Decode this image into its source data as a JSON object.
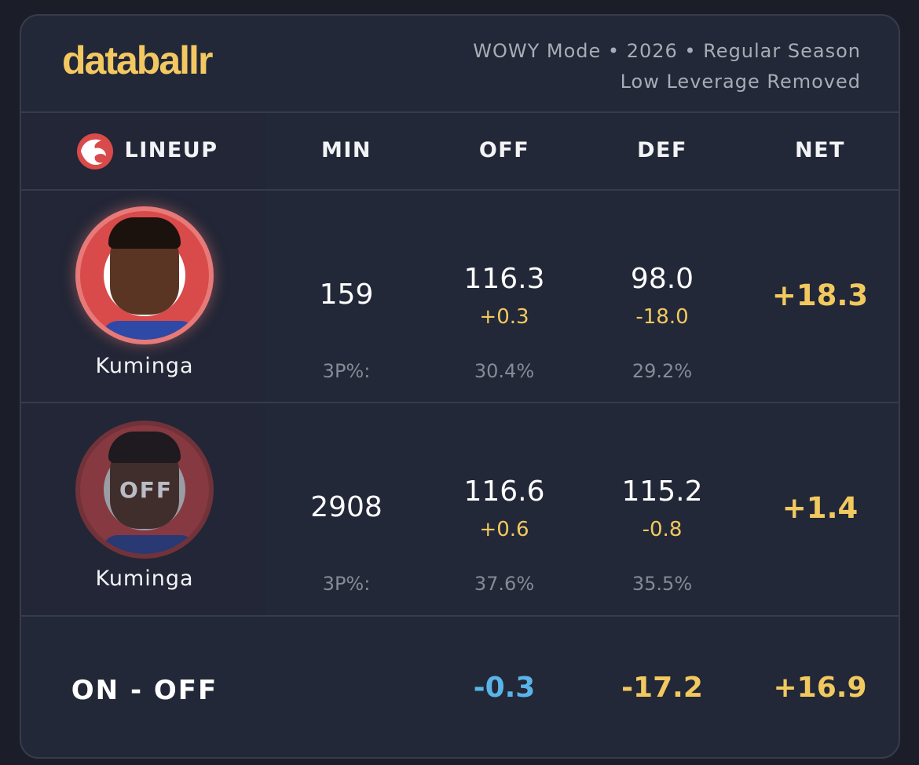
{
  "header": {
    "logo": "databallr",
    "meta_line1": "WOWY Mode • 2026 • Regular Season",
    "meta_line2": "Low Leverage Removed"
  },
  "columns": {
    "lineup": "LINEUP",
    "min": "MIN",
    "off": "OFF",
    "def": "DEF",
    "net": "NET"
  },
  "rows": [
    {
      "player": "Kuminga",
      "state": "on",
      "min": "159",
      "off": "116.3",
      "off_delta": "+0.3",
      "def": "98.0",
      "def_delta": "-18.0",
      "net": "+18.3",
      "pct_label": "3P%:",
      "off_3p": "30.4%",
      "def_3p": "29.2%"
    },
    {
      "player": "Kuminga",
      "state": "off",
      "off_badge": "OFF",
      "min": "2908",
      "off": "116.6",
      "off_delta": "+0.6",
      "def": "115.2",
      "def_delta": "-0.8",
      "net": "+1.4",
      "pct_label": "3P%:",
      "off_3p": "37.6%",
      "def_3p": "35.5%"
    }
  ],
  "footer": {
    "label": "ON - OFF",
    "off": "-0.3",
    "def": "-17.2",
    "net": "+16.9"
  },
  "colors": {
    "accent": "#f2c95f",
    "negative_blue": "#5ab4e8",
    "team_red": "#d94a4a"
  }
}
